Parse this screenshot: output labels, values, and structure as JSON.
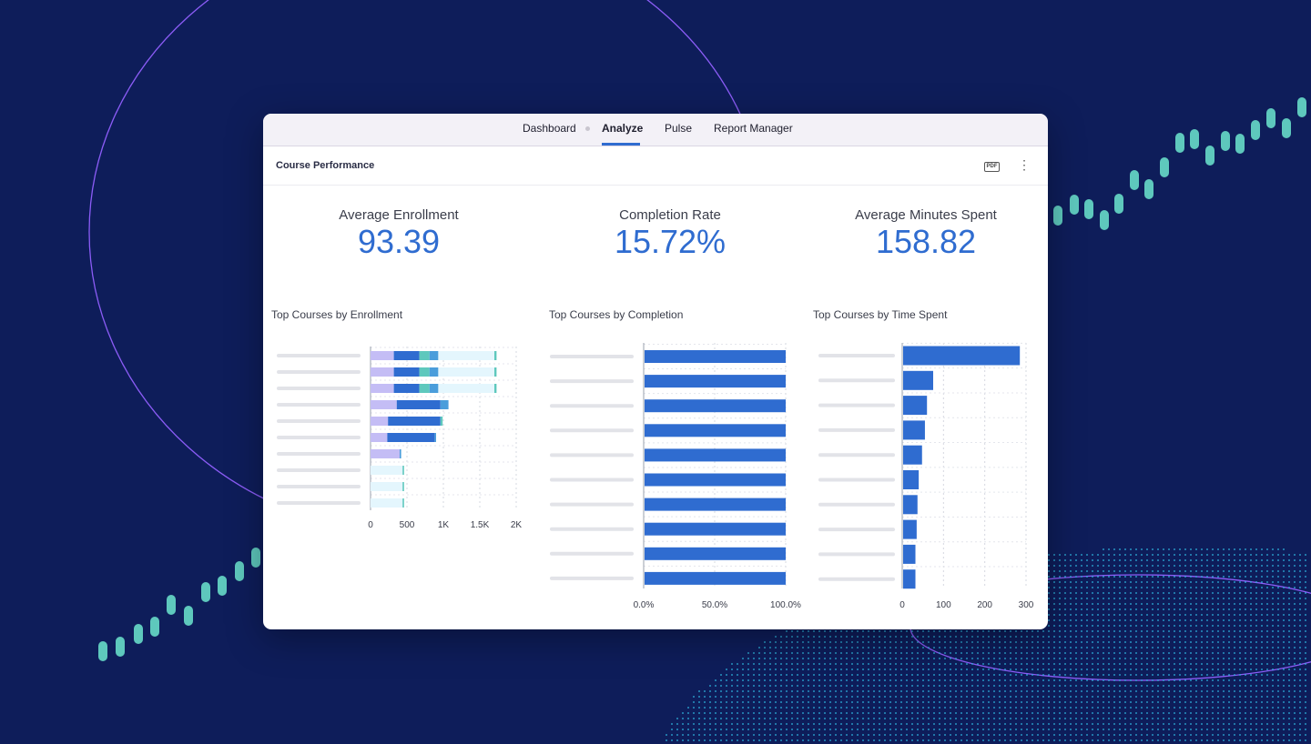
{
  "colors": {
    "background": "#0e1d5a",
    "accent": "#2f6cd0",
    "teal": "#5ec8bd",
    "purple": "#8b5cf6"
  },
  "nav": {
    "tabs": [
      {
        "label": "Dashboard",
        "active": false
      },
      {
        "label": "Analyze",
        "active": true
      },
      {
        "label": "Pulse",
        "active": false
      },
      {
        "label": "Report Manager",
        "active": false
      }
    ]
  },
  "header": {
    "title": "Course Performance",
    "pdf_label": "PDF",
    "pdf_icon": "pdf-icon",
    "more_icon": "more-vertical-icon"
  },
  "kpis": [
    {
      "label": "Average Enrollment",
      "value": "93.39"
    },
    {
      "label": "Completion Rate",
      "value": "15.72%"
    },
    {
      "label": "Average Minutes Spent",
      "value": "158.82"
    }
  ],
  "chart_data": [
    {
      "type": "bar",
      "orientation": "horizontal",
      "stacked": true,
      "title": "Top Courses by Enrollment",
      "category_labels_visible": false,
      "xlim": [
        0,
        2000
      ],
      "ticks": [
        "0",
        "500",
        "1K",
        "1.5K",
        "2K"
      ],
      "tick_values": [
        0,
        500,
        1000,
        1500,
        2000
      ],
      "series": [
        {
          "color": "#c4bdf5",
          "values": [
            320,
            320,
            320,
            360,
            240,
            230,
            400,
            0,
            0,
            0
          ]
        },
        {
          "color": "#2f6cd0",
          "values": [
            350,
            350,
            350,
            600,
            720,
            650,
            0,
            0,
            0,
            0
          ]
        },
        {
          "color": "#5ec8bd",
          "values": [
            140,
            140,
            140,
            0,
            30,
            0,
            0,
            0,
            0,
            0
          ]
        },
        {
          "color": "#4a9ddb",
          "values": [
            120,
            120,
            120,
            110,
            0,
            20,
            20,
            0,
            0,
            0
          ]
        },
        {
          "color": "#e4f6fd",
          "values": [
            770,
            770,
            770,
            0,
            0,
            0,
            0,
            440,
            440,
            440
          ]
        },
        {
          "color": "#5ec8bd",
          "values": [
            30,
            30,
            30,
            0,
            0,
            0,
            0,
            20,
            20,
            20
          ]
        }
      ]
    },
    {
      "type": "bar",
      "orientation": "horizontal",
      "title": "Top Courses by Completion",
      "category_labels_visible": false,
      "xlim": [
        0,
        100
      ],
      "ticks": [
        "0.0%",
        "50.0%",
        "100.0%"
      ],
      "tick_values": [
        0,
        50,
        100
      ],
      "values": [
        100,
        100,
        100,
        100,
        100,
        100,
        100,
        100,
        100,
        100
      ]
    },
    {
      "type": "bar",
      "orientation": "horizontal",
      "title": "Top Courses by Time Spent",
      "category_labels_visible": false,
      "xlim": [
        0,
        300
      ],
      "ticks": [
        "0",
        "100",
        "200",
        "300"
      ],
      "tick_values": [
        0,
        100,
        200,
        300
      ],
      "values": [
        285,
        75,
        60,
        55,
        48,
        40,
        37,
        35,
        32,
        32
      ]
    }
  ]
}
